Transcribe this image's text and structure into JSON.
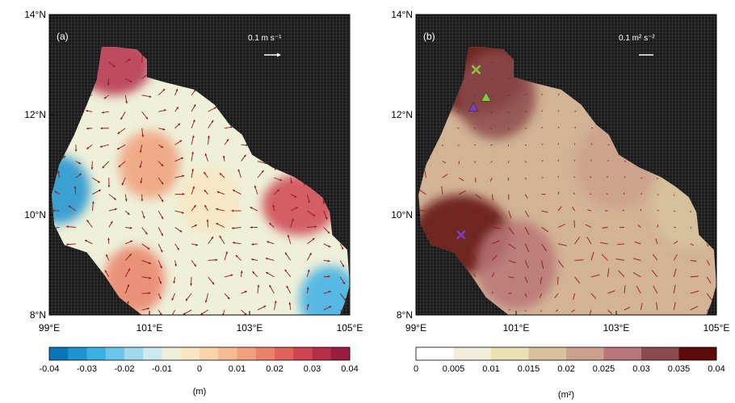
{
  "chart_data": [
    {
      "type": "heatmap",
      "panel_label": "(a)",
      "x_ticks": [
        "99°E",
        "101°E",
        "103°E",
        "105°E"
      ],
      "y_ticks": [
        "8°N",
        "10°N",
        "12°N",
        "14°N"
      ],
      "xlim": [
        99,
        105
      ],
      "ylim": [
        8,
        14
      ],
      "colorbar": {
        "ticks": [
          "-0.04",
          "-0.03",
          "-0.02",
          "-0.01",
          "0",
          "0.01",
          "0.02",
          "0.03",
          "0.04"
        ],
        "range": [
          -0.04,
          0.04
        ],
        "unit": "(m)",
        "colors": [
          "#0a75ba",
          "#1e93d0",
          "#3cb0e4",
          "#6cc6ec",
          "#9fd8ef",
          "#cde9f0",
          "#eef0d9",
          "#f8e6c3",
          "#f8d4aa",
          "#f5bc91",
          "#f0a07a",
          "#e98268",
          "#e06259",
          "#cf4451",
          "#b52e48",
          "#9c1c3f"
        ]
      },
      "field_peaks": [
        {
          "lon": 100.3,
          "lat": 13.0,
          "value": 0.03
        },
        {
          "lon": 104.0,
          "lat": 10.2,
          "value": 0.028
        },
        {
          "lon": 99.2,
          "lat": 10.5,
          "value": -0.032
        },
        {
          "lon": 104.6,
          "lat": 8.3,
          "value": -0.03
        },
        {
          "lon": 101.0,
          "lat": 11.0,
          "value": 0.012
        },
        {
          "lon": 102.2,
          "lat": 10.3,
          "value": -0.004
        },
        {
          "lon": 100.7,
          "lat": 8.7,
          "value": 0.015
        }
      ],
      "vector_scale": {
        "label": "0.1 m s⁻¹",
        "value": 0.1
      }
    },
    {
      "type": "heatmap",
      "panel_label": "(b)",
      "x_ticks": [
        "99°E",
        "101°E",
        "103°E",
        "105°E"
      ],
      "y_ticks": [
        "8°N",
        "10°N",
        "12°N",
        "14°N"
      ],
      "xlim": [
        99,
        105
      ],
      "ylim": [
        8,
        14
      ],
      "colorbar": {
        "ticks": [
          "0",
          "0.005",
          "0.01",
          "0.015",
          "0.02",
          "0.025",
          "0.03",
          "0.035",
          "0.04"
        ],
        "range": [
          0,
          0.04
        ],
        "unit": "(m²)",
        "colors": [
          "#ffffff",
          "#f2eedb",
          "#e8e2b2",
          "#d8c29c",
          "#cca08c",
          "#b97676",
          "#8c4b4b",
          "#5e0a0a"
        ]
      },
      "field_peaks": [
        {
          "lon": 100.2,
          "lat": 12.8,
          "value": 0.04
        },
        {
          "lon": 99.9,
          "lat": 9.6,
          "value": 0.037
        },
        {
          "lon": 100.6,
          "lat": 12.4,
          "value": 0.032
        },
        {
          "lon": 101.0,
          "lat": 9.0,
          "value": 0.028
        },
        {
          "lon": 103.0,
          "lat": 11.0,
          "value": 0.022
        },
        {
          "lon": 104.5,
          "lat": 10.2,
          "value": 0.018
        }
      ],
      "markers": [
        {
          "shape": "cross",
          "lon": 100.2,
          "lat": 12.9,
          "color": "#8cc63f"
        },
        {
          "shape": "triangle",
          "lon": 100.4,
          "lat": 12.35,
          "color": "#8cc63f"
        },
        {
          "shape": "triangle",
          "lon": 100.15,
          "lat": 12.15,
          "color": "#7a3fbf"
        },
        {
          "shape": "cross",
          "lon": 99.9,
          "lat": 9.6,
          "color": "#7a3fbf"
        }
      ],
      "vector_scale": {
        "label": "0.1 m² s⁻²",
        "value": 0.1
      }
    }
  ],
  "colors": {
    "land": "#1a1a1a",
    "vector": "#8b1a1a"
  }
}
